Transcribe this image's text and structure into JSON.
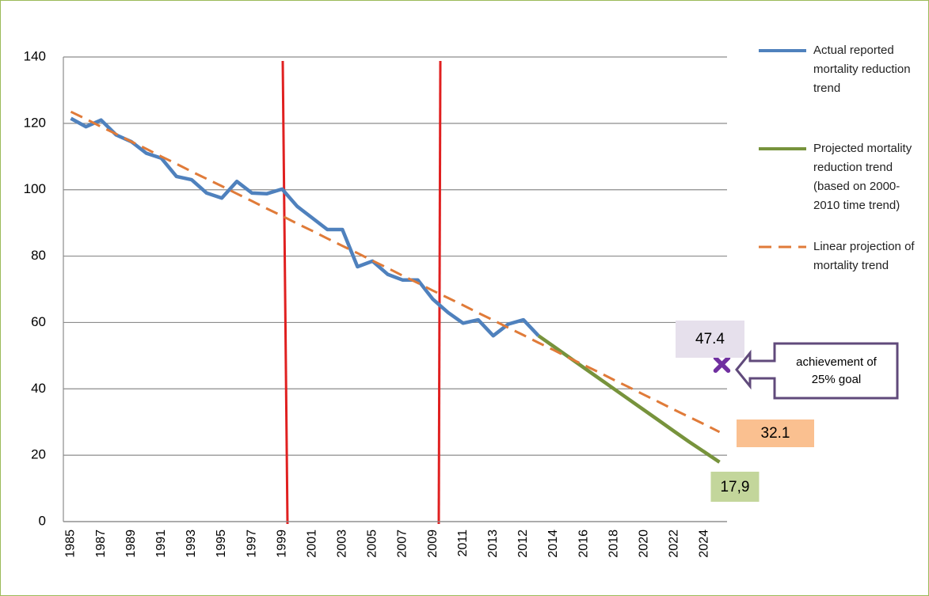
{
  "chart_data": {
    "type": "line",
    "categories": [
      "1985",
      null,
      "1987",
      null,
      "1989",
      null,
      "1991",
      null,
      "1993",
      null,
      "1995",
      null,
      "1997",
      null,
      "1999",
      null,
      "2001",
      null,
      "2003",
      null,
      "2005",
      null,
      "2007",
      null,
      "2009",
      null,
      "2011",
      null,
      "2013",
      null,
      "2012",
      null,
      "2014",
      null,
      "2016",
      null,
      "2018",
      null,
      "2020",
      null,
      "2022",
      null,
      "2024",
      null
    ],
    "series": [
      {
        "name": "Actual reported mortality reduction trend",
        "color": "#4f81bd",
        "dash": false,
        "values": [
          121.5,
          119,
          121,
          116.5,
          114.5,
          111,
          109.5,
          104,
          103,
          99,
          97.5,
          102.5,
          99,
          98.8,
          100.2,
          95,
          91.5,
          88,
          88,
          76.8,
          78.5,
          74.5,
          72.8,
          72.8,
          67,
          63,
          59.8,
          60.8,
          56,
          59.5,
          60.8,
          56,
          null,
          null,
          null,
          null,
          null,
          null,
          null,
          null,
          null,
          null,
          null,
          null
        ]
      },
      {
        "name": "Projected mortality reduction trend (based on 2000-2010 time trend)",
        "color": "#77933c",
        "dash": false,
        "values": [
          null,
          null,
          null,
          null,
          null,
          null,
          null,
          null,
          null,
          null,
          null,
          null,
          null,
          null,
          null,
          null,
          null,
          null,
          null,
          null,
          null,
          null,
          null,
          null,
          null,
          null,
          null,
          null,
          null,
          null,
          null,
          56,
          52.8,
          49.6,
          46.4,
          43.2,
          40,
          36.8,
          33.6,
          30.4,
          27.2,
          24,
          21,
          17.9
        ],
        "value_labels": [
          null,
          null,
          null,
          null,
          null,
          null,
          null,
          null,
          null,
          null,
          null,
          null,
          null,
          null,
          null,
          null,
          null,
          null,
          null,
          null,
          null,
          null,
          null,
          null,
          null,
          null,
          null,
          null,
          null,
          null,
          null,
          null,
          null,
          null,
          null,
          null,
          null,
          null,
          null,
          null,
          null,
          null,
          null,
          "17,9"
        ]
      },
      {
        "name": "Linear projection of mortality trend",
        "color": "#e07b39",
        "dash": true,
        "values": [
          123.5,
          121.3,
          119.0,
          116.8,
          114.5,
          112.3,
          110.0,
          107.8,
          105.5,
          103.3,
          101.1,
          98.8,
          96.6,
          94.3,
          92.1,
          89.8,
          87.6,
          85.3,
          83.1,
          80.9,
          78.6,
          76.4,
          74.1,
          71.9,
          69.6,
          67.4,
          65.2,
          62.9,
          60.7,
          58.4,
          56.2,
          53.9,
          51.7,
          49.4,
          47.2,
          45.0,
          42.7,
          40.5,
          38.2,
          36.0,
          33.7,
          31.5,
          29.3,
          27.0
        ]
      }
    ],
    "annotations": [
      "32.1"
    ],
    "goal": {
      "value": 47.4,
      "label": "47.4",
      "note": "achievement of 25% goal",
      "color": "#7030a0"
    },
    "ylim": [
      0,
      140
    ],
    "yticks": [
      0,
      20,
      40,
      60,
      80,
      100,
      120,
      140
    ],
    "grid": true,
    "legend": "right"
  }
}
